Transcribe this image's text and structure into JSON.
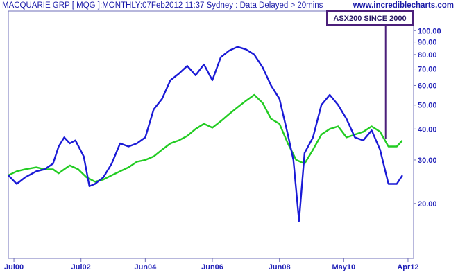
{
  "header": {
    "title": "MACQUARIE GRP [ MQG ]:MONTHLY:07Feb2012 11:37 Sydney : Data Delayed > 20mins",
    "watermark": "www.incrediblecharts.com"
  },
  "chart_data": {
    "type": "line",
    "y_scale": "log",
    "ylim": [
      12,
      120
    ],
    "x_range": [
      "2000-05",
      "2012-06"
    ],
    "grid": false,
    "legend": "none",
    "y_ticks": [
      "100.00",
      "90.00",
      "80.00",
      "70.00",
      "60.00",
      "50.00",
      "40.00",
      "30.00",
      "20.00"
    ],
    "x_ticks": [
      {
        "label": "Jul00",
        "date": "2000-07"
      },
      {
        "label": "Jul02",
        "date": "2002-07"
      },
      {
        "label": "Jun04",
        "date": "2004-06"
      },
      {
        "label": "Jun06",
        "date": "2006-06"
      },
      {
        "label": "Jun08",
        "date": "2008-06"
      },
      {
        "label": "May10",
        "date": "2010-05"
      },
      {
        "label": "Apr12",
        "date": "2012-04"
      }
    ],
    "annotation": {
      "text": "ASX200 SINCE 2000",
      "date": "2011-08"
    },
    "series": [
      {
        "color": "#1a1ad6",
        "points": [
          [
            "2000-05",
            26
          ],
          [
            "2000-08",
            24
          ],
          [
            "2000-11",
            25.5
          ],
          [
            "2001-03",
            27
          ],
          [
            "2001-06",
            27.5
          ],
          [
            "2001-09",
            29
          ],
          [
            "2001-11",
            34
          ],
          [
            "2002-01",
            37
          ],
          [
            "2002-03",
            35
          ],
          [
            "2002-05",
            36
          ],
          [
            "2002-08",
            31
          ],
          [
            "2002-10",
            23.5
          ],
          [
            "2002-12",
            24
          ],
          [
            "2003-03",
            25.5
          ],
          [
            "2003-06",
            29
          ],
          [
            "2003-09",
            35
          ],
          [
            "2003-12",
            34
          ],
          [
            "2004-03",
            35
          ],
          [
            "2004-06",
            37
          ],
          [
            "2004-09",
            48
          ],
          [
            "2004-12",
            53
          ],
          [
            "2005-03",
            63
          ],
          [
            "2005-06",
            67
          ],
          [
            "2005-09",
            72
          ],
          [
            "2005-12",
            66
          ],
          [
            "2006-03",
            73
          ],
          [
            "2006-06",
            63
          ],
          [
            "2006-09",
            78
          ],
          [
            "2006-12",
            83
          ],
          [
            "2007-03",
            86
          ],
          [
            "2007-06",
            84
          ],
          [
            "2007-09",
            80
          ],
          [
            "2007-12",
            71
          ],
          [
            "2008-03",
            60
          ],
          [
            "2008-06",
            53
          ],
          [
            "2008-09",
            38
          ],
          [
            "2008-11",
            30
          ],
          [
            "2009-01",
            17
          ],
          [
            "2009-03",
            32
          ],
          [
            "2009-06",
            37
          ],
          [
            "2009-09",
            50
          ],
          [
            "2009-12",
            55
          ],
          [
            "2010-03",
            50
          ],
          [
            "2010-06",
            44
          ],
          [
            "2010-09",
            37
          ],
          [
            "2010-12",
            36
          ],
          [
            "2011-03",
            39.5
          ],
          [
            "2011-06",
            33
          ],
          [
            "2011-09",
            24
          ],
          [
            "2011-12",
            24
          ],
          [
            "2012-02",
            26
          ]
        ]
      },
      {
        "color": "#22cc22",
        "points": [
          [
            "2000-05",
            26
          ],
          [
            "2000-08",
            27
          ],
          [
            "2000-11",
            27.5
          ],
          [
            "2001-03",
            28
          ],
          [
            "2001-06",
            27.5
          ],
          [
            "2001-09",
            27.5
          ],
          [
            "2001-11",
            26.5
          ],
          [
            "2002-01",
            27.5
          ],
          [
            "2002-03",
            28.5
          ],
          [
            "2002-06",
            27.5
          ],
          [
            "2002-09",
            25.5
          ],
          [
            "2002-12",
            24.5
          ],
          [
            "2003-03",
            25
          ],
          [
            "2003-06",
            26
          ],
          [
            "2003-09",
            27
          ],
          [
            "2003-12",
            28
          ],
          [
            "2004-03",
            29.5
          ],
          [
            "2004-06",
            30
          ],
          [
            "2004-09",
            31
          ],
          [
            "2004-12",
            33
          ],
          [
            "2005-03",
            35
          ],
          [
            "2005-06",
            36
          ],
          [
            "2005-09",
            37.5
          ],
          [
            "2005-12",
            40
          ],
          [
            "2006-03",
            42
          ],
          [
            "2006-06",
            40.5
          ],
          [
            "2006-09",
            43
          ],
          [
            "2006-12",
            46
          ],
          [
            "2007-03",
            49
          ],
          [
            "2007-06",
            52
          ],
          [
            "2007-09",
            55
          ],
          [
            "2007-12",
            51
          ],
          [
            "2008-03",
            44
          ],
          [
            "2008-06",
            42
          ],
          [
            "2008-09",
            35
          ],
          [
            "2008-12",
            30
          ],
          [
            "2009-03",
            29
          ],
          [
            "2009-06",
            33
          ],
          [
            "2009-09",
            38
          ],
          [
            "2009-12",
            40
          ],
          [
            "2010-03",
            41
          ],
          [
            "2010-06",
            37
          ],
          [
            "2010-09",
            38
          ],
          [
            "2010-12",
            39
          ],
          [
            "2011-03",
            41
          ],
          [
            "2011-06",
            39
          ],
          [
            "2011-09",
            34
          ],
          [
            "2011-12",
            34
          ],
          [
            "2012-02",
            36
          ]
        ]
      }
    ]
  }
}
